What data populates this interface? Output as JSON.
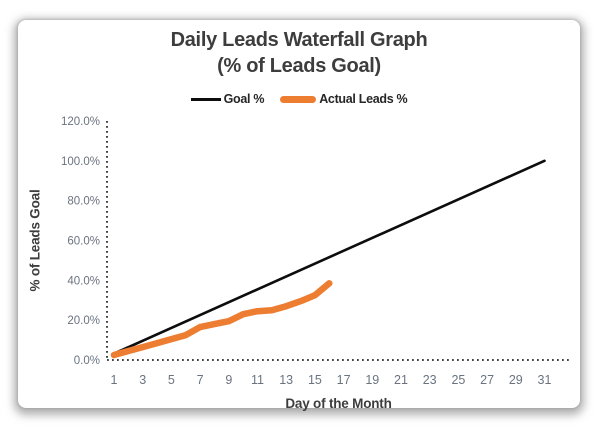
{
  "colors": {
    "goal_line": "#0d0d0d",
    "actual_line": "#ed7d31",
    "title_text": "#3d3d3d",
    "tick_text": "#6a7480",
    "axis_dots": "#2b2b2b",
    "background": "#ffffff"
  },
  "chart_data": {
    "type": "line",
    "title": "Daily Leads Waterfall Graph",
    "subtitle": "(% of Leads Goal)",
    "xlabel": "Day of the Month",
    "ylabel": "% of Leads Goal",
    "xlim": [
      1,
      31
    ],
    "ylim": [
      0,
      120
    ],
    "grid": false,
    "axis_style": "dotted",
    "legend_position": "top-center",
    "x_ticks": [
      1,
      3,
      5,
      7,
      9,
      11,
      13,
      15,
      17,
      19,
      21,
      23,
      25,
      27,
      29,
      31
    ],
    "y_ticks": [
      {
        "value": 0,
        "label": "0.0%"
      },
      {
        "value": 20,
        "label": "20.0%"
      },
      {
        "value": 40,
        "label": "40.0%"
      },
      {
        "value": 60,
        "label": "60.0%"
      },
      {
        "value": 80,
        "label": "80.0%"
      },
      {
        "value": 100,
        "label": "100.0%"
      },
      {
        "value": 120,
        "label": "120.0%"
      }
    ],
    "series": [
      {
        "name": "Goal %",
        "color": "#0d0d0d",
        "stroke_width": 2.6,
        "x": [
          1,
          31
        ],
        "values": [
          3.2,
          100
        ]
      },
      {
        "name": "Actual Leads %",
        "color": "#ed7d31",
        "stroke_width": 6.5,
        "x": [
          1,
          2,
          3,
          4,
          5,
          6,
          7,
          8,
          9,
          10,
          11,
          12,
          13,
          14,
          15,
          16
        ],
        "values": [
          2.5,
          4.5,
          6.5,
          8.5,
          10.5,
          12.5,
          16.5,
          18,
          19.5,
          23,
          24.5,
          25,
          27,
          29.5,
          32.5,
          38.5
        ]
      }
    ]
  }
}
